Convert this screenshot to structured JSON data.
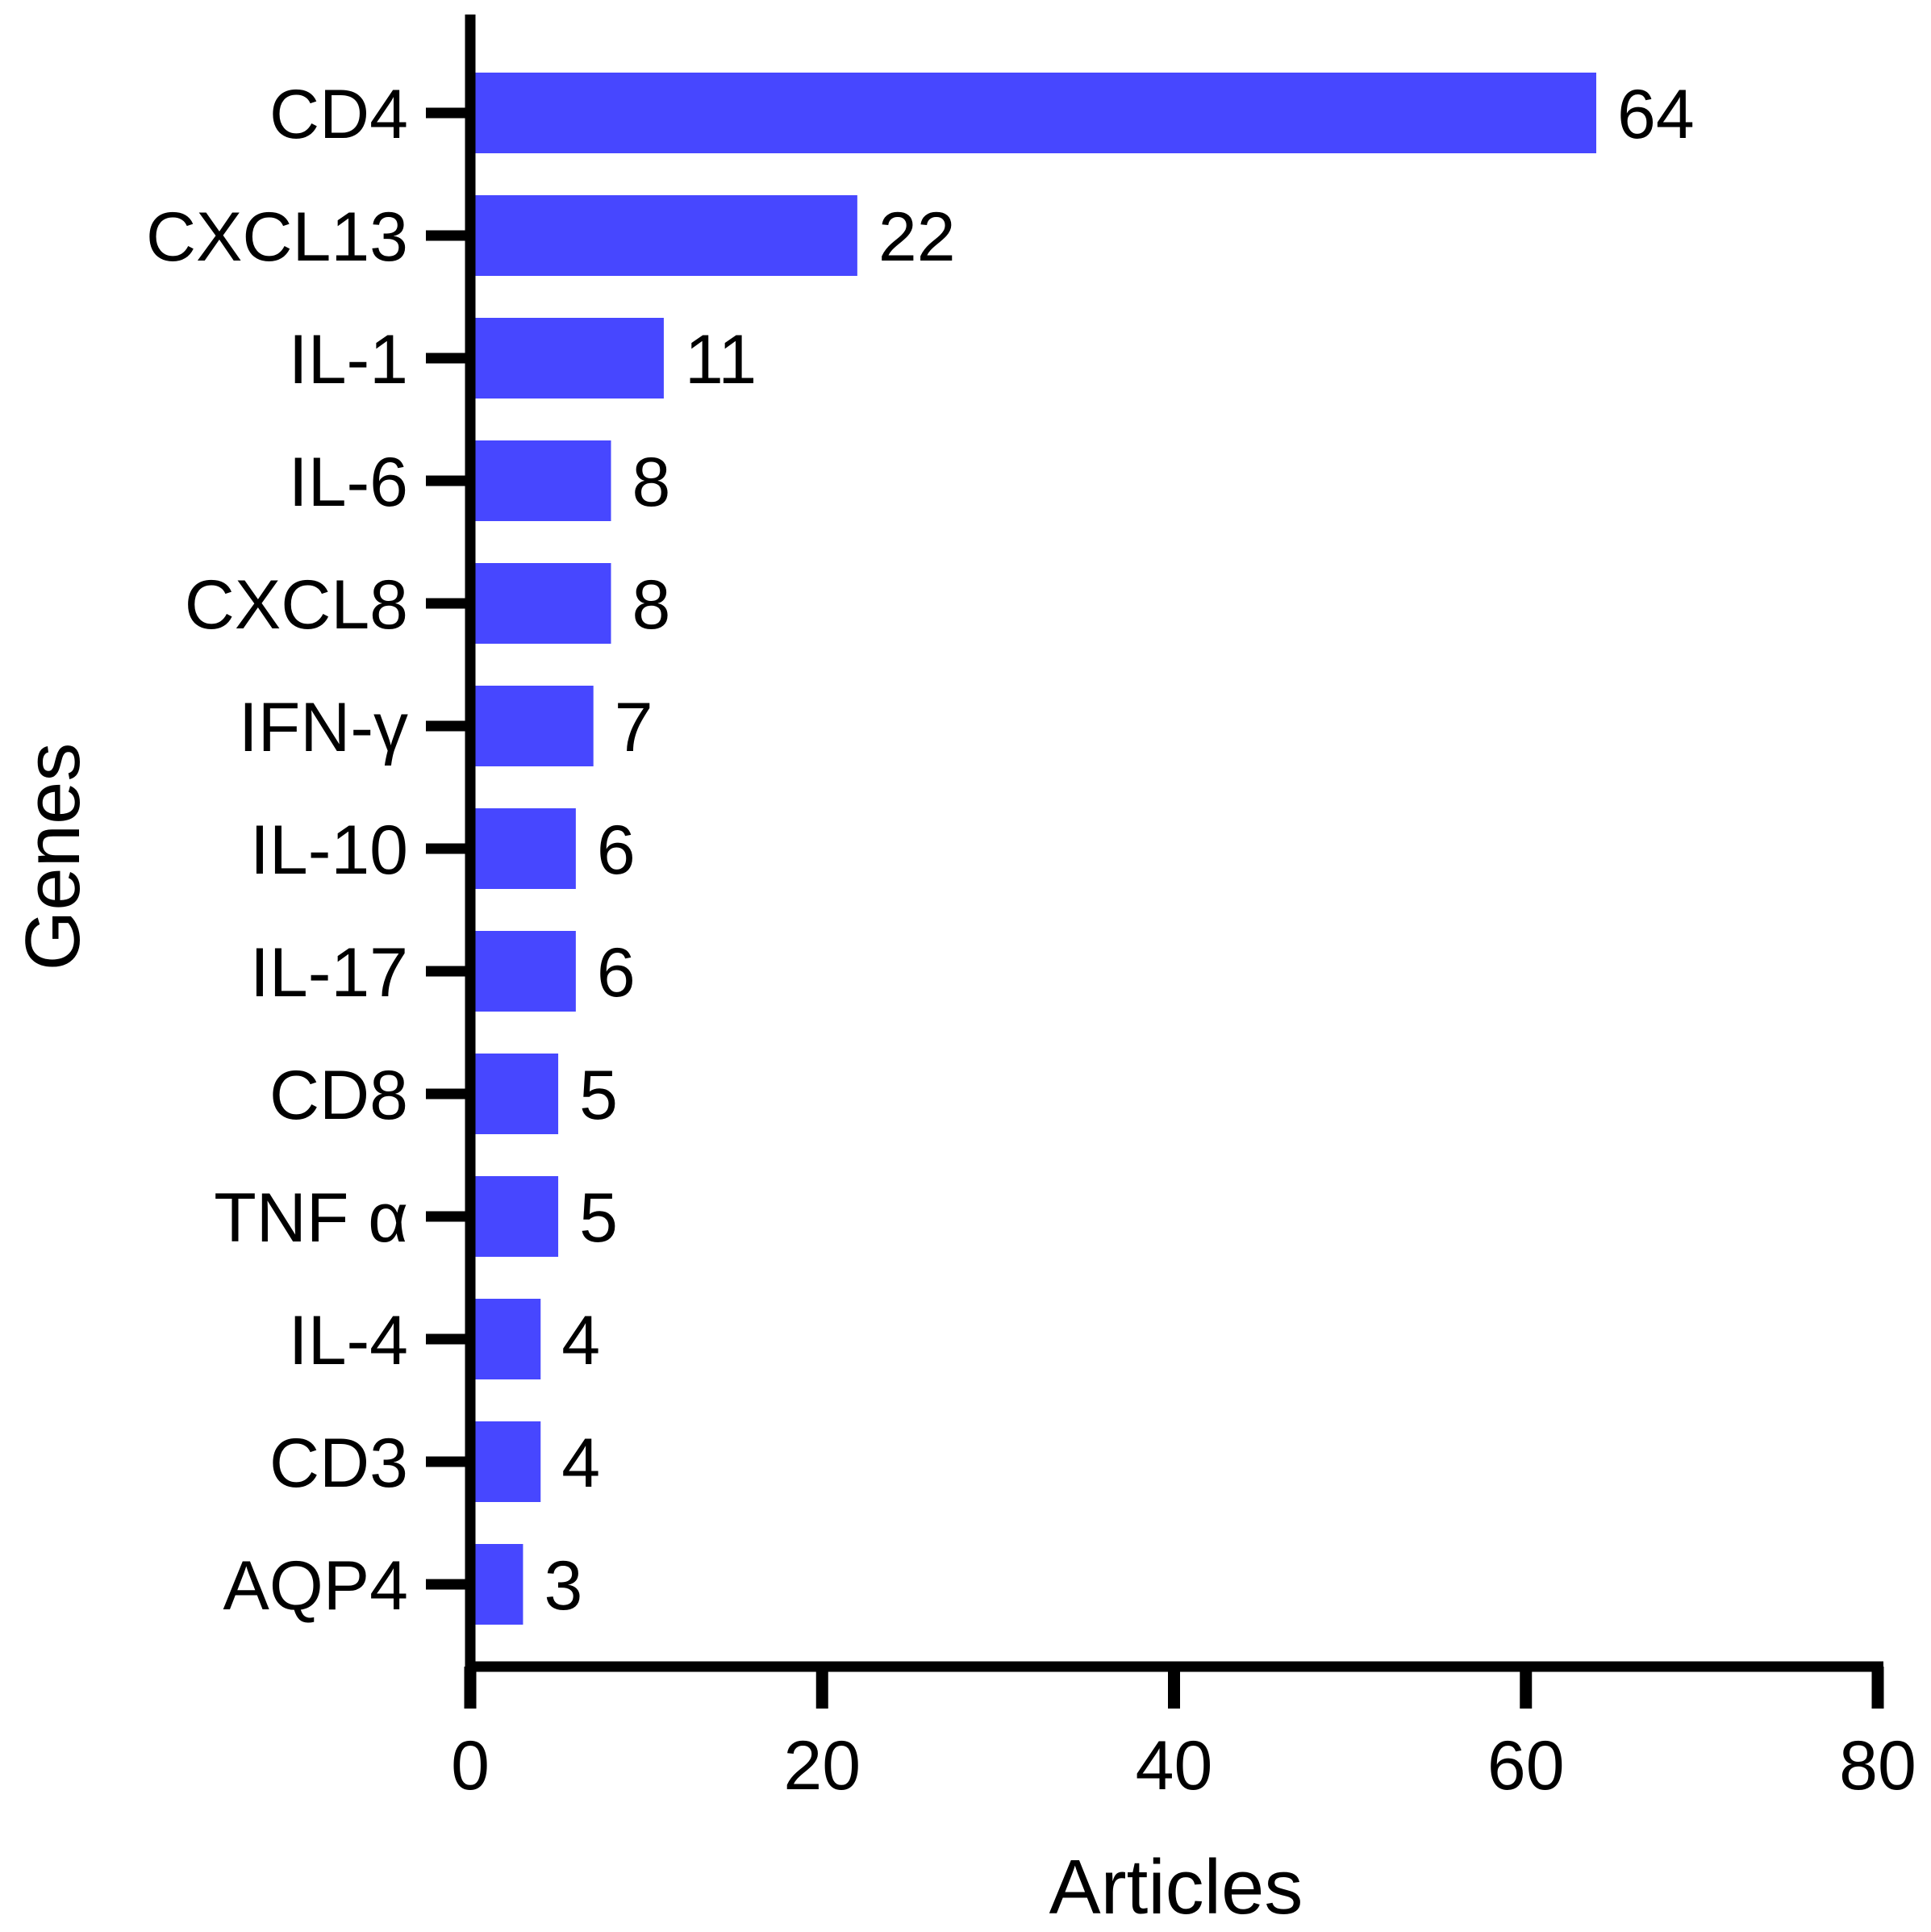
{
  "colors": {
    "bar": "#4747ff",
    "axis": "#000000",
    "background": "#ffffff"
  },
  "chart_data": {
    "type": "bar",
    "orientation": "horizontal",
    "categories": [
      "CD4",
      "CXCL13",
      "IL-1",
      "IL-6",
      "CXCL8",
      "IFN-γ",
      "IL-10",
      "IL-17",
      "CD8",
      "TNF α",
      "IL-4",
      "CD3",
      "AQP4"
    ],
    "values": [
      64,
      22,
      11,
      8,
      8,
      7,
      6,
      6,
      5,
      5,
      4,
      4,
      3
    ],
    "data_labels": [
      "64",
      "22",
      "11",
      "8",
      "8",
      "7",
      "6",
      "6",
      "5",
      "5",
      "4",
      "4",
      "3"
    ],
    "xlabel": "Articles",
    "ylabel": "Genes",
    "xlim": [
      0,
      80
    ],
    "xticks": [
      0,
      20,
      40,
      60,
      80
    ],
    "xtick_labels": [
      "0",
      "20",
      "40",
      "60",
      "80"
    ],
    "grid": false,
    "legend": "none"
  }
}
